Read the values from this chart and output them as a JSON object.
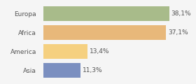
{
  "categories": [
    "Europa",
    "Africa",
    "America",
    "Asia"
  ],
  "values": [
    38.1,
    37.1,
    13.4,
    11.3
  ],
  "bar_colors": [
    "#a8bb8a",
    "#e8b87a",
    "#f5d080",
    "#7b8fc0"
  ],
  "labels": [
    "38,1%",
    "37,1%",
    "13,4%",
    "11,3%"
  ],
  "xlim": [
    0,
    45
  ],
  "background_color": "#f5f5f5",
  "label_fontsize": 6.5,
  "category_fontsize": 6.5,
  "bar_height": 0.78
}
